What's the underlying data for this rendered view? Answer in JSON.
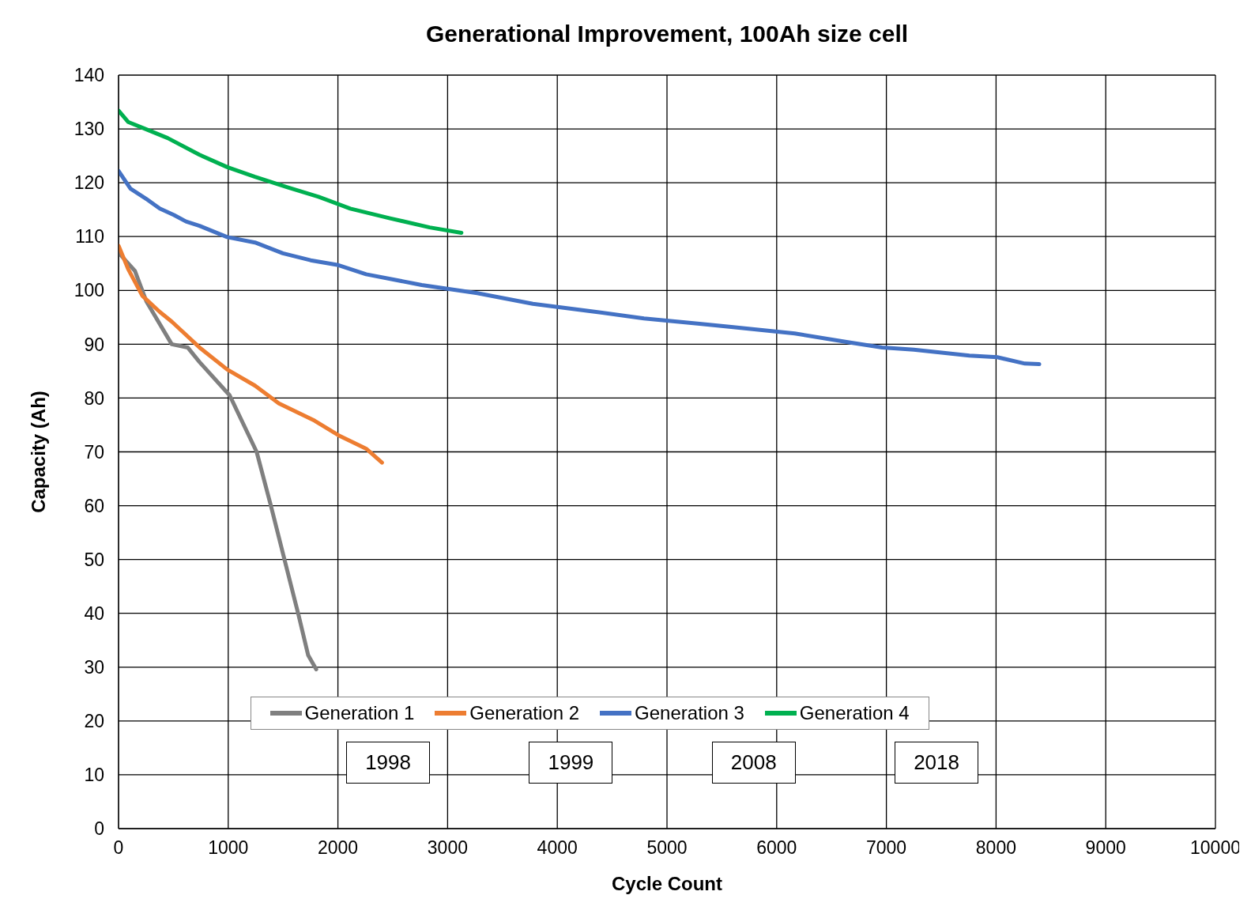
{
  "chart_data": {
    "type": "line",
    "title": "Generational Improvement, 100Ah size cell",
    "xlabel": "Cycle Count",
    "ylabel": "Capacity (Ah)",
    "xlim": [
      0,
      10000
    ],
    "xticks": [
      0,
      1000,
      2000,
      3000,
      4000,
      5000,
      6000,
      7000,
      8000,
      9000,
      10000
    ],
    "ylim": [
      0,
      140
    ],
    "yticks": [
      0,
      10,
      20,
      30,
      40,
      50,
      60,
      70,
      80,
      90,
      100,
      110,
      120,
      130,
      140
    ],
    "grid": true,
    "legend": "bottom",
    "marker": "none",
    "line_style": "solid",
    "annotations": [
      "1998",
      "1999",
      "2008",
      "2018"
    ],
    "series": [
      {
        "name": "Generation 1",
        "color": "#7f7f7f",
        "x": [
          0,
          150,
          253,
          485,
          630,
          738,
          1013,
          1259,
          1389,
          1520,
          1642,
          1729,
          1802
        ],
        "values": [
          107,
          103.6,
          98,
          90,
          89.4,
          86.7,
          80.5,
          70,
          60,
          49.4,
          39.6,
          32.2,
          29.6
        ]
      },
      {
        "name": "Generation 2",
        "color": "#ed7d31",
        "x": [
          0,
          87,
          217,
          376,
          485,
          738,
          991,
          1244,
          1462,
          1787,
          2004,
          2257,
          2402
        ],
        "values": [
          108.3,
          104,
          99,
          96,
          94.2,
          89.4,
          85.3,
          82.3,
          79,
          75.8,
          73.1,
          70.6,
          68
        ]
      },
      {
        "name": "Generation 3",
        "color": "#4472c4",
        "x": [
          0,
          109,
          253,
          376,
          506,
          615,
          738,
          991,
          1244,
          1498,
          1751,
          2004,
          2257,
          2764,
          3270,
          3777,
          4284,
          4790,
          5297,
          5586,
          6165,
          6671,
          6961,
          7250,
          7757,
          8010,
          8263,
          8394
        ],
        "values": [
          122.2,
          118.9,
          117,
          115.2,
          114,
          112.8,
          112,
          109.9,
          108.9,
          106.9,
          105.6,
          104.7,
          103,
          101,
          99.5,
          97.5,
          96.2,
          94.8,
          93.8,
          93.2,
          92,
          90.3,
          89.4,
          89,
          87.9,
          87.6,
          86.4,
          86.3
        ]
      },
      {
        "name": "Generation 4",
        "color": "#00b050",
        "x": [
          0,
          87,
          232,
          448,
          738,
          991,
          1244,
          1534,
          1823,
          2113,
          2475,
          2836,
          3126
        ],
        "values": [
          133.4,
          131.3,
          130.1,
          128.3,
          125.2,
          122.9,
          121.1,
          119.2,
          117.4,
          115.2,
          113.4,
          111.7,
          110.7
        ]
      }
    ]
  }
}
